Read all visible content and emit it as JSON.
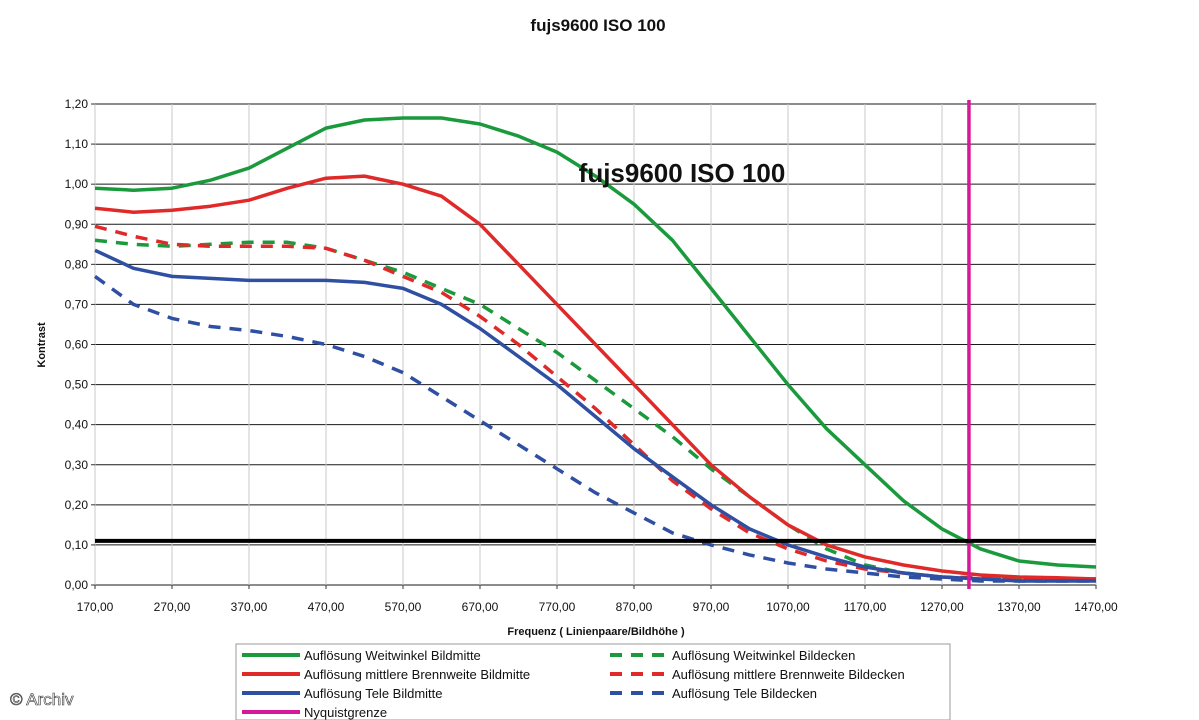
{
  "chart_data": {
    "type": "line",
    "title": "fujs9600 ISO 100",
    "inner_title": "fujs9600 ISO 100",
    "xlabel": "Frequenz ( Linienpaare/Bildhöhe )",
    "ylabel": "Kontrast",
    "xlim": [
      170,
      1470
    ],
    "ylim": [
      0,
      1.2
    ],
    "x_ticks": [
      "170,00",
      "270,00",
      "370,00",
      "470,00",
      "570,00",
      "670,00",
      "770,00",
      "870,00",
      "970,00",
      "1070,00",
      "1170,00",
      "1270,00",
      "1370,00",
      "1470,00"
    ],
    "y_ticks": [
      "0,00",
      "0,10",
      "0,20",
      "0,30",
      "0,40",
      "0,50",
      "0,60",
      "0,70",
      "0,80",
      "0,90",
      "1,00",
      "1,10",
      "1,20"
    ],
    "grid": true,
    "legend_position": "bottom",
    "series": [
      {
        "name": "Auflösung Weitwinkel Bildmitte",
        "color": "#1a9a3c",
        "dash": false,
        "x": [
          170,
          220,
          270,
          320,
          370,
          420,
          470,
          520,
          570,
          620,
          670,
          720,
          770,
          820,
          870,
          920,
          970,
          1020,
          1070,
          1120,
          1170,
          1220,
          1270,
          1320,
          1370,
          1420,
          1470
        ],
        "y": [
          0.99,
          0.985,
          0.99,
          1.01,
          1.04,
          1.09,
          1.14,
          1.16,
          1.165,
          1.165,
          1.15,
          1.12,
          1.08,
          1.02,
          0.95,
          0.86,
          0.74,
          0.62,
          0.5,
          0.39,
          0.3,
          0.21,
          0.14,
          0.09,
          0.06,
          0.05,
          0.045
        ]
      },
      {
        "name": "Auflösung Weitwinkel Bildecken",
        "color": "#1a9a3c",
        "dash": true,
        "x": [
          170,
          220,
          270,
          320,
          370,
          420,
          470,
          520,
          570,
          620,
          670,
          720,
          770,
          820,
          870,
          920,
          970,
          1020,
          1070,
          1120,
          1170,
          1220,
          1270,
          1320,
          1370,
          1420,
          1470
        ],
        "y": [
          0.86,
          0.85,
          0.845,
          0.85,
          0.855,
          0.855,
          0.84,
          0.81,
          0.78,
          0.74,
          0.7,
          0.64,
          0.58,
          0.51,
          0.44,
          0.37,
          0.29,
          0.22,
          0.15,
          0.09,
          0.05,
          0.03,
          0.02,
          0.015,
          0.015,
          0.015,
          0.015
        ]
      },
      {
        "name": "Auflösung mittlere Brennweite Bildmitte",
        "color": "#e02a2a",
        "dash": false,
        "x": [
          170,
          220,
          270,
          320,
          370,
          420,
          470,
          520,
          570,
          620,
          670,
          720,
          770,
          820,
          870,
          920,
          970,
          1020,
          1070,
          1120,
          1170,
          1220,
          1270,
          1320,
          1370,
          1420,
          1470
        ],
        "y": [
          0.94,
          0.93,
          0.935,
          0.945,
          0.96,
          0.99,
          1.015,
          1.02,
          1.0,
          0.97,
          0.9,
          0.8,
          0.7,
          0.6,
          0.5,
          0.4,
          0.3,
          0.22,
          0.15,
          0.1,
          0.07,
          0.05,
          0.035,
          0.025,
          0.02,
          0.018,
          0.015
        ]
      },
      {
        "name": "Auflösung mittlere Brennweite Bildecken",
        "color": "#e02a2a",
        "dash": true,
        "x": [
          170,
          220,
          270,
          320,
          370,
          420,
          470,
          520,
          570,
          620,
          670,
          720,
          770,
          820,
          870,
          920,
          970,
          1020,
          1070,
          1120,
          1170,
          1220,
          1270,
          1320,
          1370,
          1420,
          1470
        ],
        "y": [
          0.895,
          0.87,
          0.85,
          0.845,
          0.845,
          0.845,
          0.84,
          0.81,
          0.77,
          0.73,
          0.67,
          0.6,
          0.52,
          0.44,
          0.35,
          0.26,
          0.19,
          0.13,
          0.09,
          0.06,
          0.04,
          0.03,
          0.02,
          0.018,
          0.015,
          0.015,
          0.015
        ]
      },
      {
        "name": "Auflösung Tele Bildmitte",
        "color": "#2f4fa3",
        "dash": false,
        "x": [
          170,
          220,
          270,
          320,
          370,
          420,
          470,
          520,
          570,
          620,
          670,
          720,
          770,
          820,
          870,
          920,
          970,
          1020,
          1070,
          1120,
          1170,
          1220,
          1270,
          1320,
          1370,
          1420,
          1470
        ],
        "y": [
          0.835,
          0.79,
          0.77,
          0.765,
          0.76,
          0.76,
          0.76,
          0.755,
          0.74,
          0.7,
          0.64,
          0.57,
          0.5,
          0.42,
          0.34,
          0.27,
          0.2,
          0.14,
          0.1,
          0.07,
          0.045,
          0.03,
          0.02,
          0.015,
          0.01,
          0.01,
          0.01
        ]
      },
      {
        "name": "Auflösung Tele Bildecken",
        "color": "#2f4fa3",
        "dash": true,
        "x": [
          170,
          220,
          270,
          320,
          370,
          420,
          470,
          520,
          570,
          620,
          670,
          720,
          770,
          820,
          870,
          920,
          970,
          1020,
          1070,
          1120,
          1170,
          1220,
          1270,
          1320,
          1370,
          1420,
          1470
        ],
        "y": [
          0.77,
          0.7,
          0.665,
          0.645,
          0.635,
          0.62,
          0.6,
          0.57,
          0.53,
          0.47,
          0.41,
          0.35,
          0.29,
          0.23,
          0.18,
          0.13,
          0.1,
          0.075,
          0.055,
          0.04,
          0.03,
          0.02,
          0.015,
          0.01,
          0.01,
          0.01,
          0.01
        ]
      }
    ],
    "reference_lines": [
      {
        "name": "Nyquistgrenze",
        "orientation": "vertical",
        "x": 1305,
        "color": "#d6199b"
      },
      {
        "orientation": "horizontal",
        "y": 0.11,
        "color": "#000000"
      }
    ]
  },
  "legend": {
    "items": [
      {
        "label": "Auflösung Weitwinkel Bildmitte",
        "color": "#1a9a3c",
        "dash": false
      },
      {
        "label": "Auflösung Weitwinkel Bildecken",
        "color": "#1a9a3c",
        "dash": true
      },
      {
        "label": "Auflösung mittlere Brennweite Bildmitte",
        "color": "#e02a2a",
        "dash": false
      },
      {
        "label": "Auflösung mittlere Brennweite Bildecken",
        "color": "#e02a2a",
        "dash": true
      },
      {
        "label": "Auflösung Tele Bildmitte",
        "color": "#2f4fa3",
        "dash": false
      },
      {
        "label": "Auflösung Tele Bildecken",
        "color": "#2f4fa3",
        "dash": true
      },
      {
        "label": "Nyquistgrenze",
        "color": "#d6199b",
        "dash": false
      }
    ]
  },
  "watermark": "© Archiv"
}
